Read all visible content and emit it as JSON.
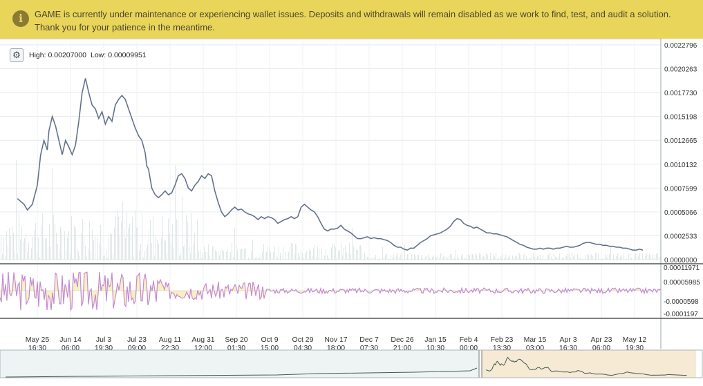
{
  "banner": {
    "icon": "info-icon",
    "message": "GAME is currently under maintenance or experiencing wallet issues. Deposits and withdrawals will remain disabled as we work to find, test, and audit a solution. Thank you for your patience in the meantime."
  },
  "header": {
    "settings_icon": "gear-icon",
    "high_label": "High:",
    "high_value": "0.00207000",
    "low_label": "Low:",
    "low_value": "0.00009951"
  },
  "colors": {
    "banner_bg": "#e9d55a",
    "price_line": "#5c6b85",
    "volume": "#dfe7e7",
    "indicator_line": "#c689d4",
    "indicator_fill": "#e8d44f",
    "nav_left_bg": "#eef4f4",
    "nav_right_bg": "#f6ead4",
    "nav_line": "#3e5a50"
  },
  "chart_data": [
    {
      "type": "line",
      "name": "price",
      "ylim": [
        0,
        0.0022796
      ],
      "yticks": [
        "0.0022796",
        "0.0020263",
        "0.0017730",
        "0.0015198",
        "0.0012665",
        "0.0010132",
        "0.0007599",
        "0.0005066",
        "0.0002533",
        "0.0000000"
      ],
      "xticks": [
        {
          "date": "May 25",
          "time": "16:30"
        },
        {
          "date": "Jun 14",
          "time": "06:00"
        },
        {
          "date": "Jul 3",
          "time": "19:30"
        },
        {
          "date": "Jul 23",
          "time": "09:00"
        },
        {
          "date": "Aug 11",
          "time": "22:30"
        },
        {
          "date": "Aug 31",
          "time": "12:00"
        },
        {
          "date": "Sep 20",
          "time": "01:30"
        },
        {
          "date": "Oct 9",
          "time": "15:00"
        },
        {
          "date": "Oct 29",
          "time": "04:30"
        },
        {
          "date": "Nov 17",
          "time": "18:00"
        },
        {
          "date": "Dec 7",
          "time": "07:30"
        },
        {
          "date": "Dec 26",
          "time": "21:00"
        },
        {
          "date": "Jan 15",
          "time": "10:30"
        },
        {
          "date": "Feb 4",
          "time": "00:00"
        },
        {
          "date": "Feb 23",
          "time": "13:30"
        },
        {
          "date": "Mar 15",
          "time": "03:00"
        },
        {
          "date": "Apr 3",
          "time": "16:30"
        },
        {
          "date": "Apr 23",
          "time": "06:00"
        },
        {
          "date": "May 12",
          "time": "19:30"
        }
      ],
      "xrange": [
        -0.6,
        19.0
      ],
      "points": [
        [
          -0.6,
          0.00064
        ],
        [
          -0.4,
          0.00058
        ],
        [
          -0.3,
          0.00052
        ],
        [
          -0.15,
          0.00058
        ],
        [
          0.0,
          0.00078
        ],
        [
          0.1,
          0.0011
        ],
        [
          0.2,
          0.00125
        ],
        [
          0.3,
          0.00115
        ],
        [
          0.35,
          0.00135
        ],
        [
          0.45,
          0.0015
        ],
        [
          0.55,
          0.0014
        ],
        [
          0.65,
          0.00125
        ],
        [
          0.75,
          0.0011
        ],
        [
          0.85,
          0.00125
        ],
        [
          0.95,
          0.00118
        ],
        [
          1.05,
          0.0011
        ],
        [
          1.15,
          0.0012
        ],
        [
          1.25,
          0.00145
        ],
        [
          1.35,
          0.00175
        ],
        [
          1.45,
          0.0019
        ],
        [
          1.55,
          0.00175
        ],
        [
          1.65,
          0.00162
        ],
        [
          1.75,
          0.00158
        ],
        [
          1.85,
          0.00148
        ],
        [
          1.95,
          0.00155
        ],
        [
          2.05,
          0.00142
        ],
        [
          2.15,
          0.0015
        ],
        [
          2.25,
          0.00145
        ],
        [
          2.35,
          0.00162
        ],
        [
          2.45,
          0.00168
        ],
        [
          2.55,
          0.00172
        ],
        [
          2.65,
          0.00168
        ],
        [
          2.75,
          0.00158
        ],
        [
          2.85,
          0.00148
        ],
        [
          2.95,
          0.00138
        ],
        [
          3.05,
          0.0013
        ],
        [
          3.15,
          0.00125
        ],
        [
          3.25,
          0.00112
        ],
        [
          3.3,
          0.00098
        ],
        [
          3.35,
          0.00095
        ],
        [
          3.45,
          0.00075
        ],
        [
          3.55,
          0.00068
        ],
        [
          3.65,
          0.00065
        ],
        [
          3.75,
          0.00068
        ],
        [
          3.85,
          0.00072
        ],
        [
          3.95,
          0.00068
        ],
        [
          4.05,
          0.0007
        ],
        [
          4.15,
          0.00078
        ],
        [
          4.25,
          0.00088
        ],
        [
          4.35,
          0.0009
        ],
        [
          4.45,
          0.00085
        ],
        [
          4.55,
          0.00075
        ],
        [
          4.65,
          0.00072
        ],
        [
          4.75,
          0.00078
        ],
        [
          4.85,
          0.00082
        ],
        [
          4.95,
          0.00088
        ],
        [
          5.05,
          0.00085
        ],
        [
          5.15,
          0.0009
        ],
        [
          5.25,
          0.00088
        ],
        [
          5.35,
          0.00072
        ],
        [
          5.45,
          0.0006
        ],
        [
          5.55,
          0.0005
        ],
        [
          5.65,
          0.00045
        ],
        [
          5.75,
          0.00048
        ],
        [
          5.85,
          0.00052
        ],
        [
          5.95,
          0.00055
        ],
        [
          6.05,
          0.00052
        ],
        [
          6.15,
          0.00053
        ],
        [
          6.25,
          0.0005
        ],
        [
          6.35,
          0.00048
        ],
        [
          6.45,
          0.00047
        ],
        [
          6.55,
          0.00045
        ],
        [
          6.65,
          0.00042
        ],
        [
          6.75,
          0.00045
        ],
        [
          6.85,
          0.00043
        ],
        [
          6.95,
          0.00045
        ],
        [
          7.05,
          0.00044
        ],
        [
          7.15,
          0.00042
        ],
        [
          7.25,
          0.00038
        ],
        [
          7.35,
          0.0004
        ],
        [
          7.45,
          0.00042
        ],
        [
          7.55,
          0.00043
        ],
        [
          7.65,
          0.00045
        ],
        [
          7.75,
          0.00043
        ],
        [
          7.85,
          0.00045
        ],
        [
          7.95,
          0.00055
        ],
        [
          8.05,
          0.00058
        ],
        [
          8.15,
          0.00055
        ],
        [
          8.25,
          0.00052
        ],
        [
          8.35,
          0.0005
        ],
        [
          8.45,
          0.00045
        ],
        [
          8.55,
          0.00038
        ],
        [
          8.65,
          0.00032
        ],
        [
          8.75,
          0.0003
        ],
        [
          8.85,
          0.00032
        ],
        [
          8.95,
          0.00032
        ],
        [
          9.05,
          0.00033
        ],
        [
          9.15,
          0.00036
        ],
        [
          9.25,
          0.00032
        ],
        [
          9.35,
          0.0003
        ],
        [
          9.45,
          0.00028
        ],
        [
          9.55,
          0.00025
        ],
        [
          9.65,
          0.00022
        ],
        [
          9.75,
          0.00022
        ],
        [
          9.85,
          0.00023
        ],
        [
          9.95,
          0.00024
        ],
        [
          10.05,
          0.00022
        ],
        [
          10.15,
          0.00023
        ],
        [
          10.25,
          0.00022
        ],
        [
          10.35,
          0.00022
        ],
        [
          10.45,
          0.00021
        ],
        [
          10.55,
          0.0002
        ],
        [
          10.65,
          0.00018
        ],
        [
          10.75,
          0.00015
        ],
        [
          10.85,
          0.00013
        ],
        [
          10.95,
          0.00013
        ],
        [
          11.05,
          0.00011
        ],
        [
          11.15,
          0.0001
        ],
        [
          11.25,
          0.00012
        ],
        [
          11.35,
          0.00012
        ],
        [
          11.45,
          0.00015
        ],
        [
          11.55,
          0.00018
        ],
        [
          11.65,
          0.0002
        ],
        [
          11.75,
          0.00022
        ],
        [
          11.85,
          0.00025
        ],
        [
          11.95,
          0.00026
        ],
        [
          12.05,
          0.00027
        ],
        [
          12.15,
          0.00028
        ],
        [
          12.25,
          0.0003
        ],
        [
          12.35,
          0.00032
        ],
        [
          12.45,
          0.00035
        ],
        [
          12.55,
          0.0004
        ],
        [
          12.65,
          0.00043
        ],
        [
          12.75,
          0.00042
        ],
        [
          12.85,
          0.00038
        ],
        [
          12.95,
          0.00036
        ],
        [
          13.05,
          0.00035
        ],
        [
          13.15,
          0.00033
        ],
        [
          13.25,
          0.00034
        ],
        [
          13.35,
          0.00032
        ],
        [
          13.45,
          0.0003
        ],
        [
          13.55,
          0.00028
        ],
        [
          13.65,
          0.00028
        ],
        [
          13.75,
          0.00027
        ],
        [
          13.85,
          0.00027
        ],
        [
          13.95,
          0.00026
        ],
        [
          14.05,
          0.00025
        ],
        [
          14.15,
          0.00024
        ],
        [
          14.25,
          0.00022
        ],
        [
          14.35,
          0.0002
        ],
        [
          14.45,
          0.00018
        ],
        [
          14.55,
          0.00016
        ],
        [
          14.65,
          0.00015
        ],
        [
          14.75,
          0.00013
        ],
        [
          14.85,
          0.00012
        ],
        [
          14.95,
          0.00011
        ],
        [
          15.05,
          0.00011
        ],
        [
          15.15,
          0.00012
        ],
        [
          15.25,
          0.00011
        ],
        [
          15.35,
          0.00012
        ],
        [
          15.45,
          0.00012
        ],
        [
          15.55,
          0.00011
        ],
        [
          15.65,
          0.00012
        ],
        [
          15.75,
          0.00012
        ],
        [
          15.85,
          0.00013
        ],
        [
          15.95,
          0.00014
        ],
        [
          16.05,
          0.00013
        ],
        [
          16.15,
          0.00013
        ],
        [
          16.25,
          0.00014
        ],
        [
          16.35,
          0.00015
        ],
        [
          16.45,
          0.00017
        ],
        [
          16.55,
          0.00018
        ],
        [
          16.65,
          0.00018
        ],
        [
          16.75,
          0.00017
        ],
        [
          16.85,
          0.00016
        ],
        [
          16.95,
          0.00016
        ],
        [
          17.05,
          0.00015
        ],
        [
          17.15,
          0.00015
        ],
        [
          17.25,
          0.00014
        ],
        [
          17.35,
          0.00014
        ],
        [
          17.45,
          0.00013
        ],
        [
          17.55,
          0.00013
        ],
        [
          17.65,
          0.00012
        ],
        [
          17.75,
          0.00012
        ],
        [
          17.85,
          0.00011
        ],
        [
          17.95,
          0.0001
        ],
        [
          18.05,
          0.0001
        ],
        [
          18.15,
          0.00011
        ],
        [
          18.25,
          0.0001
        ]
      ]
    },
    {
      "type": "area",
      "name": "oscillator",
      "ylim": [
        -0.0001197,
        0.0001197
      ],
      "yticks": [
        "0.00011971",
        "0.00005985",
        "-0.0000598",
        "-0.0001197"
      ]
    },
    {
      "type": "line",
      "name": "navigator"
    }
  ]
}
